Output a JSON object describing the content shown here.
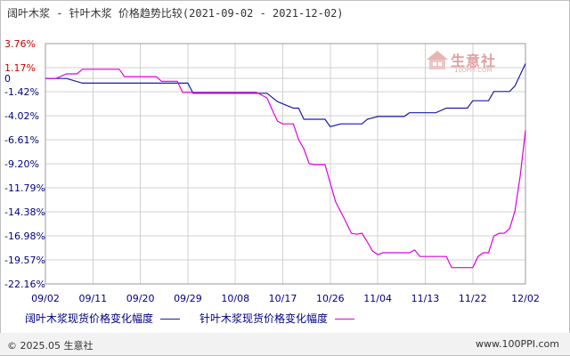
{
  "title": "阔叶木浆 - 针叶木浆  价格趋势比较(2021-09-02 - 2021-12-02)",
  "logo": {
    "text": "生意社",
    "sub": "100PPI.COM"
  },
  "footer": {
    "copyright": "© 2025.05 生意社",
    "site": "www.100PPI.com"
  },
  "colors": {
    "series1": "#1a1aa8",
    "series2": "#e000e0",
    "axis_text_negative": "#000080",
    "axis_text_positive": "#cc0000",
    "grid": "#d0d0d0"
  },
  "chart_data": {
    "type": "line",
    "ylim": [
      -22.16,
      3.76
    ],
    "y_ticks": [
      "3.76%",
      "1.17%",
      "0",
      "-1.42%",
      "-4.02%",
      "-6.61%",
      "-9.20%",
      "-11.79%",
      "-14.38%",
      "-16.98%",
      "-19.57%",
      "-22.16%"
    ],
    "y_tick_values": [
      3.76,
      1.17,
      0,
      -1.42,
      -4.02,
      -6.61,
      -9.2,
      -11.79,
      -14.38,
      -16.98,
      -19.57,
      -22.16
    ],
    "x_ticks": [
      "09/02",
      "09/11",
      "09/20",
      "09/29",
      "10/08",
      "10/17",
      "10/26",
      "11/04",
      "11/13",
      "11/22",
      "12/02"
    ],
    "x_tick_days": [
      0,
      9,
      18,
      27,
      36,
      45,
      54,
      63,
      72,
      81,
      91
    ],
    "x_range": [
      0,
      91
    ],
    "series": [
      {
        "name": "阔叶木浆现货价格变化幅度",
        "points": [
          [
            0,
            0
          ],
          [
            2,
            0
          ],
          [
            4,
            0
          ],
          [
            7,
            -0.5
          ],
          [
            12,
            -0.5
          ],
          [
            17,
            -0.5
          ],
          [
            22,
            -0.5
          ],
          [
            24,
            -0.5
          ],
          [
            25,
            -0.5
          ],
          [
            27,
            -0.5
          ],
          [
            28,
            -1.6
          ],
          [
            35,
            -1.6
          ],
          [
            40,
            -1.6
          ],
          [
            42,
            -1.6
          ],
          [
            44,
            -2.5
          ],
          [
            47,
            -3.2
          ],
          [
            48,
            -3.2
          ],
          [
            49,
            -4.4
          ],
          [
            53,
            -4.4
          ],
          [
            54,
            -5.2
          ],
          [
            56,
            -4.9
          ],
          [
            59,
            -4.9
          ],
          [
            60,
            -4.9
          ],
          [
            61,
            -4.4
          ],
          [
            63,
            -4.1
          ],
          [
            68,
            -4.1
          ],
          [
            69,
            -3.7
          ],
          [
            74,
            -3.7
          ],
          [
            76,
            -3.2
          ],
          [
            80,
            -3.2
          ],
          [
            81,
            -2.4
          ],
          [
            84,
            -2.4
          ],
          [
            85,
            -1.4
          ],
          [
            86,
            -1.4
          ],
          [
            88,
            -1.4
          ],
          [
            89,
            -0.8
          ],
          [
            91,
            1.6
          ]
        ]
      },
      {
        "name": "针叶木浆现货价格变化幅度",
        "points": [
          [
            0,
            0
          ],
          [
            2,
            0
          ],
          [
            4,
            0.5
          ],
          [
            6,
            0.5
          ],
          [
            7,
            1.0
          ],
          [
            14,
            1.0
          ],
          [
            15,
            0.2
          ],
          [
            21,
            0.2
          ],
          [
            22,
            -0.3
          ],
          [
            25,
            -0.3
          ],
          [
            26,
            -1.5
          ],
          [
            40,
            -1.5
          ],
          [
            42,
            -2.1
          ],
          [
            43,
            -3.4
          ],
          [
            44,
            -4.6
          ],
          [
            45,
            -4.9
          ],
          [
            47,
            -4.9
          ],
          [
            48,
            -6.6
          ],
          [
            49,
            -7.6
          ],
          [
            50,
            -9.2
          ],
          [
            51,
            -9.3
          ],
          [
            53,
            -9.3
          ],
          [
            55,
            -13.3
          ],
          [
            57,
            -15.5
          ],
          [
            58,
            -16.7
          ],
          [
            59,
            -16.8
          ],
          [
            60,
            -16.7
          ],
          [
            61,
            -17.6
          ],
          [
            62,
            -18.6
          ],
          [
            63,
            -19.0
          ],
          [
            64,
            -18.8
          ],
          [
            69,
            -18.8
          ],
          [
            70,
            -18.5
          ],
          [
            71,
            -19.2
          ],
          [
            76,
            -19.2
          ],
          [
            77,
            -20.4
          ],
          [
            81,
            -20.4
          ],
          [
            82,
            -19.2
          ],
          [
            83,
            -18.8
          ],
          [
            84,
            -18.8
          ],
          [
            85,
            -17.0
          ],
          [
            86,
            -16.7
          ],
          [
            87,
            -16.7
          ],
          [
            88,
            -16.2
          ],
          [
            89,
            -14.3
          ],
          [
            90,
            -10.5
          ],
          [
            91,
            -5.6
          ]
        ]
      }
    ]
  }
}
